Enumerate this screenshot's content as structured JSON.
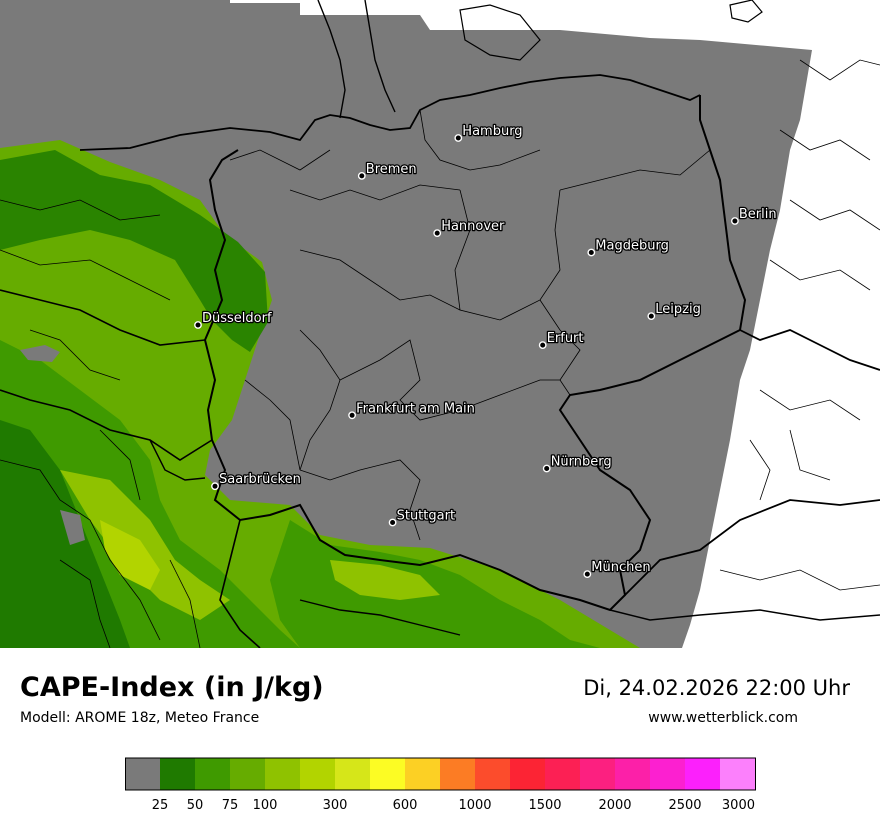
{
  "title": "CAPE-Index (in J/kg)",
  "subtitle": "Modell: AROME 18z, Meteo France",
  "datetime": "Di, 24.02.2026 22:00 Uhr",
  "website": "www.wetterblick.com",
  "colors": {
    "no_data_gray": "#7a7a7a",
    "land_outside": "#ffffff",
    "border_line": "#000000"
  },
  "cities": [
    {
      "name": "Hamburg",
      "lon": 9.99,
      "lat": 53.55
    },
    {
      "name": "Bremen",
      "lon": 8.8,
      "lat": 53.08
    },
    {
      "name": "Berlin",
      "lon": 13.4,
      "lat": 52.52
    },
    {
      "name": "Hannover",
      "lon": 9.73,
      "lat": 52.37
    },
    {
      "name": "Magdeburg",
      "lon": 11.63,
      "lat": 52.13
    },
    {
      "name": "Düsseldorf",
      "lon": 6.78,
      "lat": 51.23
    },
    {
      "name": "Leipzig",
      "lon": 12.37,
      "lat": 51.34
    },
    {
      "name": "Erfurt",
      "lon": 11.03,
      "lat": 50.98
    },
    {
      "name": "Frankfurt am Main",
      "lon": 8.68,
      "lat": 50.11
    },
    {
      "name": "Nürnberg",
      "lon": 11.08,
      "lat": 49.45
    },
    {
      "name": "Saarbrücken",
      "lon": 6.99,
      "lat": 49.23
    },
    {
      "name": "Stuttgart",
      "lon": 9.18,
      "lat": 48.78
    },
    {
      "name": "München",
      "lon": 11.58,
      "lat": 48.14
    }
  ],
  "legend": {
    "colors": [
      "#7a7a7a",
      "#1f7a00",
      "#3f9a00",
      "#66ac00",
      "#8fc200",
      "#b2d400",
      "#d6e619",
      "#fcfc24",
      "#fcd024",
      "#fc7c24",
      "#fc4c2c",
      "#fc2434",
      "#fc2054",
      "#fc2080",
      "#fc20a8",
      "#fc20d0",
      "#fc20fc",
      "#fc80fc"
    ],
    "ticks": [
      "25",
      "50",
      "75",
      "100",
      "300",
      "600",
      "1000",
      "1500",
      "2000",
      "2500",
      "3000"
    ]
  }
}
